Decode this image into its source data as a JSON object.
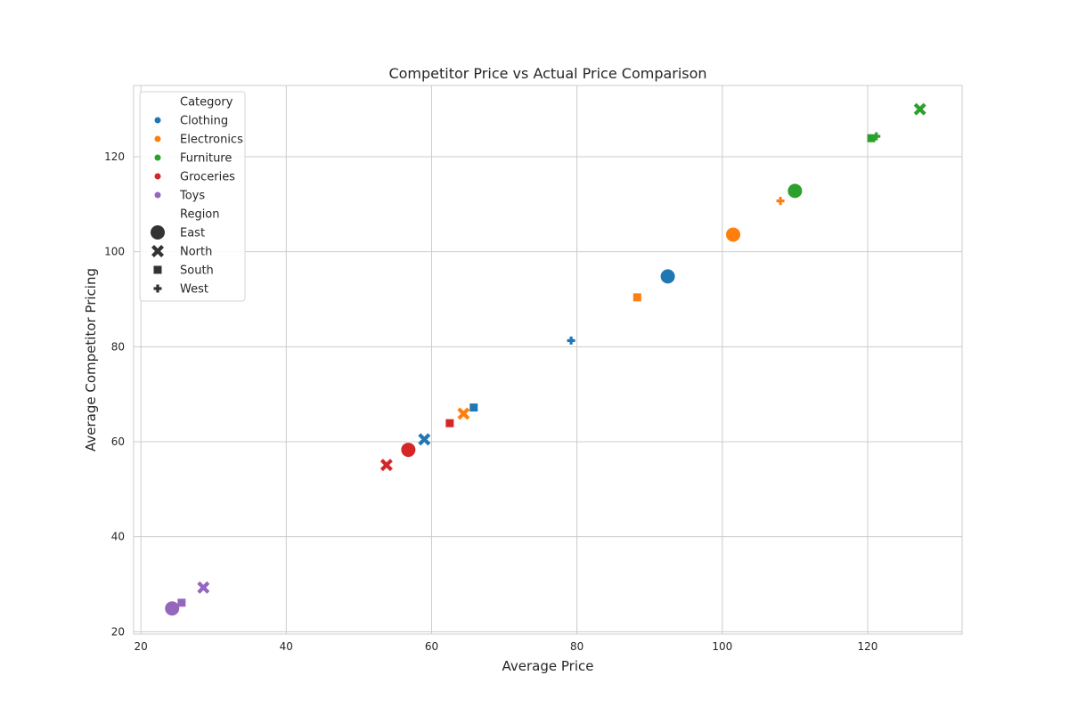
{
  "chart_data": {
    "type": "scatter",
    "title": "Competitor Price vs Actual Price Comparison",
    "xlabel": "Average Price",
    "ylabel": "Average Competitor Pricing",
    "xlim": [
      19,
      133
    ],
    "ylim": [
      19.5,
      135
    ],
    "xticks": [
      20,
      40,
      60,
      80,
      100,
      120
    ],
    "yticks": [
      20,
      40,
      60,
      80,
      100,
      120
    ],
    "grid": true,
    "legend_position": "upper-left",
    "legend": {
      "hue_title": "Category",
      "categories": [
        {
          "name": "Clothing",
          "color": "#1f77b4"
        },
        {
          "name": "Electronics",
          "color": "#ff7f0e"
        },
        {
          "name": "Furniture",
          "color": "#2ca02c"
        },
        {
          "name": "Groceries",
          "color": "#d62728"
        },
        {
          "name": "Toys",
          "color": "#9467bd"
        }
      ],
      "style_title": "Region",
      "regions": [
        {
          "name": "East",
          "marker": "circle"
        },
        {
          "name": "North",
          "marker": "x"
        },
        {
          "name": "South",
          "marker": "square"
        },
        {
          "name": "West",
          "marker": "plus"
        }
      ]
    },
    "points": [
      {
        "category": "Clothing",
        "region": "East",
        "x": 92.5,
        "y": 94.8
      },
      {
        "category": "Clothing",
        "region": "North",
        "x": 59.0,
        "y": 60.5
      },
      {
        "category": "Clothing",
        "region": "South",
        "x": 65.8,
        "y": 67.2
      },
      {
        "category": "Clothing",
        "region": "West",
        "x": 79.2,
        "y": 81.3
      },
      {
        "category": "Electronics",
        "region": "East",
        "x": 101.5,
        "y": 103.6
      },
      {
        "category": "Electronics",
        "region": "North",
        "x": 64.4,
        "y": 65.9
      },
      {
        "category": "Electronics",
        "region": "South",
        "x": 88.3,
        "y": 90.4
      },
      {
        "category": "Electronics",
        "region": "West",
        "x": 108.0,
        "y": 110.7
      },
      {
        "category": "Furniture",
        "region": "East",
        "x": 110.0,
        "y": 112.8
      },
      {
        "category": "Furniture",
        "region": "North",
        "x": 127.2,
        "y": 130.0
      },
      {
        "category": "Furniture",
        "region": "South",
        "x": 120.5,
        "y": 123.9
      },
      {
        "category": "Furniture",
        "region": "West",
        "x": 121.2,
        "y": 124.3
      },
      {
        "category": "Groceries",
        "region": "East",
        "x": 56.8,
        "y": 58.3
      },
      {
        "category": "Groceries",
        "region": "North",
        "x": 53.8,
        "y": 55.1
      },
      {
        "category": "Groceries",
        "region": "South",
        "x": 62.5,
        "y": 63.9
      },
      {
        "category": "Toys",
        "region": "East",
        "x": 24.3,
        "y": 24.9
      },
      {
        "category": "Toys",
        "region": "North",
        "x": 28.6,
        "y": 29.3
      },
      {
        "category": "Toys",
        "region": "South",
        "x": 25.6,
        "y": 26.1
      }
    ]
  }
}
